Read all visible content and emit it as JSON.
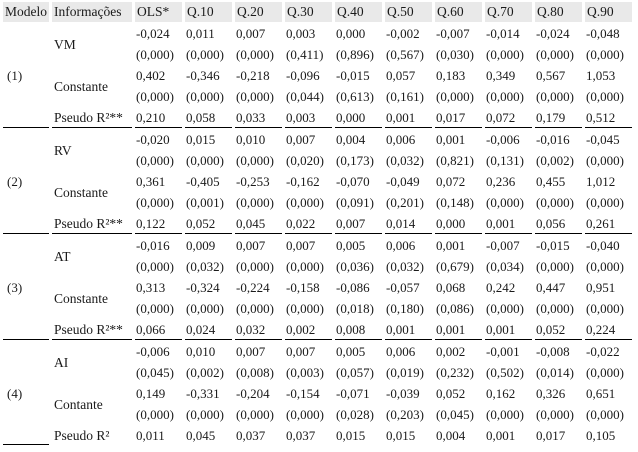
{
  "table": {
    "columns": [
      "Modelo",
      "Informações",
      "OLS*",
      "Q.10",
      "Q.20",
      "Q.30",
      "Q.40",
      "Q.50",
      "Q.60",
      "Q.70",
      "Q.80",
      "Q.90"
    ],
    "models": [
      {
        "model": "(1)",
        "vars": [
          {
            "label": "VM",
            "coef": [
              "-0,024",
              "0,011",
              "0,007",
              "0,003",
              "0,000",
              "-0,002",
              "-0,007",
              "-0,014",
              "-0,024",
              "-0,048"
            ],
            "p": [
              "(0,000)",
              "(0,000)",
              "(0,000)",
              "(0,411)",
              "(0,896)",
              "(0,567)",
              "(0,030)",
              "(0,000)",
              "(0,000)",
              "(0,000)"
            ]
          },
          {
            "label": "Constante",
            "coef": [
              "0,402",
              "-0,346",
              "-0,218",
              "-0,096",
              "-0,015",
              "0,057",
              "0,183",
              "0,349",
              "0,567",
              "1,053"
            ],
            "p": [
              "(0,000)",
              "(0,000)",
              "(0,000)",
              "(0,044)",
              "(0,613)",
              "(0,161)",
              "(0,000)",
              "(0,000)",
              "(0,000)",
              "(0,000)"
            ]
          }
        ],
        "pseudo_label": "Pseudo R²**",
        "pseudo": [
          "0,210",
          "0,058",
          "0,033",
          "0,003",
          "0,000",
          "0,001",
          "0,017",
          "0,072",
          "0,179",
          "0,512"
        ]
      },
      {
        "model": "(2)",
        "vars": [
          {
            "label": "RV",
            "coef": [
              "-0,020",
              "0,015",
              "0,010",
              "0,007",
              "0,004",
              "0,006",
              "0,001",
              "-0,006",
              "-0,016",
              "-0,045"
            ],
            "p": [
              "(0,000)",
              "(0,000)",
              "(0,000)",
              "(0,020)",
              "(0,173)",
              "(0,032)",
              "(0,821)",
              "(0,131)",
              "(0,002)",
              "(0,000)"
            ]
          },
          {
            "label": "Constante",
            "coef": [
              "0,361",
              "-0,405",
              "-0,253",
              "-0,162",
              "-0,070",
              "-0,049",
              "0,072",
              "0,236",
              "0,455",
              "1,012"
            ],
            "p": [
              "(0,000)",
              "(0,001)",
              "(0,000)",
              "(0,000)",
              "(0,091)",
              "(0,201)",
              "(0,148)",
              "(0,000)",
              "(0,000)",
              "(0,000)"
            ]
          }
        ],
        "pseudo_label": "Pseudo R²**",
        "pseudo": [
          "0,122",
          "0,052",
          "0,045",
          "0,022",
          "0,007",
          "0,014",
          "0,000",
          "0,001",
          "0,056",
          "0,261"
        ]
      },
      {
        "model": "(3)",
        "vars": [
          {
            "label": "AT",
            "coef": [
              "-0,016",
              "0,009",
              "0,007",
              "0,007",
              "0,005",
              "0,006",
              "0,001",
              "-0,007",
              "-0,015",
              "-0,040"
            ],
            "p": [
              "(0,000)",
              "(0,032)",
              "(0,000)",
              "(0,000)",
              "(0,036)",
              "(0,032)",
              "(0,679)",
              "(0,034)",
              "(0,000)",
              "(0,000)"
            ]
          },
          {
            "label": "Constante",
            "coef": [
              "0,313",
              "-0,324",
              "-0,224",
              "-0,158",
              "-0,086",
              "-0,057",
              "0,068",
              "0,242",
              "0,447",
              "0,951"
            ],
            "p": [
              "(0,000)",
              "(0,000)",
              "(0,000)",
              "(0,000)",
              "(0,018)",
              "(0,180)",
              "(0,086)",
              "(0,000)",
              "(0,000)",
              "(0,000)"
            ]
          }
        ],
        "pseudo_label": "Pseudo R²**",
        "pseudo": [
          "0,066",
          "0,024",
          "0,032",
          "0,002",
          "0,008",
          "0,001",
          "0,001",
          "0,001",
          "0,052",
          "0,224"
        ]
      },
      {
        "model": "(4)",
        "vars": [
          {
            "label": "AI",
            "coef": [
              "-0,006",
              "0,010",
              "0,007",
              "0,007",
              "0,005",
              "0,006",
              "0,002",
              "-0,001",
              "-0,008",
              "-0,022"
            ],
            "p": [
              "(0,045)",
              "(0,002)",
              "(0,008)",
              "(0,003)",
              "(0,057)",
              "(0,019)",
              "(0,232)",
              "(0,502)",
              "(0,014)",
              "(0,000)"
            ]
          },
          {
            "label": "Contante",
            "coef": [
              "0,149",
              "-0,331",
              "-0,204",
              "-0,154",
              "-0,071",
              "-0,039",
              "0,052",
              "0,162",
              "0,326",
              "0,651"
            ],
            "p": [
              "(0,000)",
              "(0,000)",
              "(0,000)",
              "(0,000)",
              "(0,028)",
              "(0,203)",
              "(0,045)",
              "(0,000)",
              "(0,000)",
              "(0,000)"
            ]
          }
        ],
        "pseudo_label": "Pseudo R²",
        "pseudo": [
          "0,011",
          "0,045",
          "0,037",
          "0,037",
          "0,015",
          "0,015",
          "0,004",
          "0,001",
          "0,017",
          "0,105"
        ]
      }
    ]
  }
}
